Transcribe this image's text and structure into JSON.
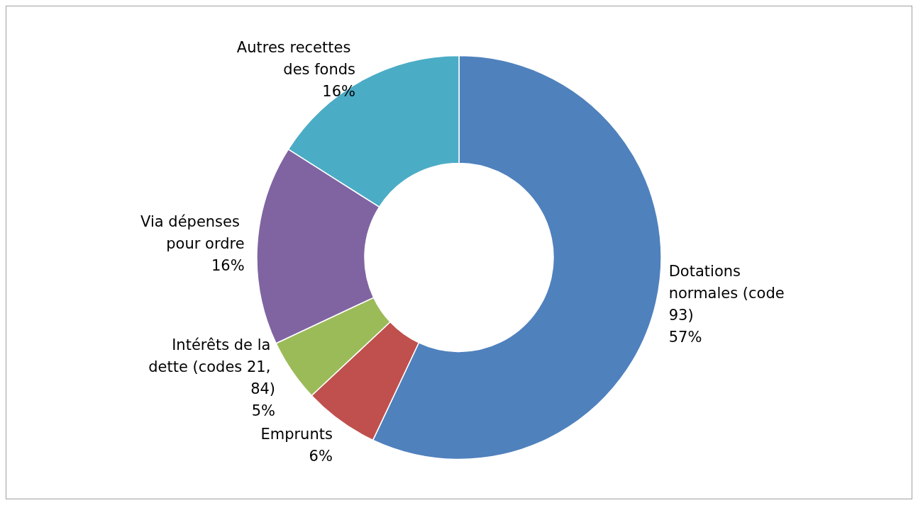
{
  "chart_data": {
    "type": "donut",
    "categories": [
      "Dotations normales (code 93)",
      "Emprunts",
      "Intérêts de la dette (codes 21, 84)",
      "Via dépenses pour ordre",
      "Autres recettes des fonds"
    ],
    "values": [
      57,
      6,
      5,
      16,
      16
    ],
    "colors": [
      "#4f81bd",
      "#c0504d",
      "#9bbb59",
      "#8064a2",
      "#4bacc6"
    ],
    "value_labels": [
      "57%",
      "6%",
      "5%",
      "16%",
      "16%"
    ],
    "legend": false
  }
}
